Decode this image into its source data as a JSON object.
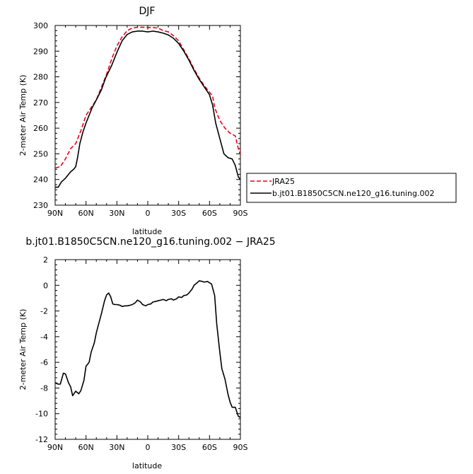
{
  "chart_data": [
    {
      "type": "line",
      "title": "DJF",
      "xlabel": "latitude",
      "ylabel": "2-meter Air Temp (K)",
      "ylim": [
        230,
        300
      ],
      "xlim": [
        -90,
        90
      ],
      "x_axis_direction": "90N on left, 90S on right (x = degrees south positive)",
      "yticks": [
        230,
        240,
        250,
        260,
        270,
        280,
        290,
        300
      ],
      "xtick_values": [
        -90,
        -60,
        -30,
        0,
        30,
        60,
        90
      ],
      "xtick_labels": [
        "90N",
        "60N",
        "30N",
        "0",
        "30S",
        "60S",
        "90S"
      ],
      "grid": false,
      "legend_position": "right, outside plot",
      "series": [
        {
          "name": "JRA25",
          "color": "#e8001c",
          "dash": "dashed",
          "x": [
            -90,
            -85,
            -80,
            -75,
            -70,
            -65,
            -60,
            -55,
            -50,
            -45,
            -40,
            -35,
            -30,
            -25,
            -20,
            -15,
            -10,
            -5,
            0,
            5,
            10,
            15,
            20,
            25,
            30,
            35,
            40,
            45,
            50,
            55,
            60,
            63,
            65,
            70,
            75,
            80,
            85,
            88,
            90
          ],
          "y": [
            244.5,
            245,
            248,
            252,
            254,
            259,
            265,
            268,
            271,
            276,
            281,
            287,
            292,
            295.5,
            298,
            299,
            299.3,
            299.3,
            299.2,
            299.2,
            299,
            298,
            297.5,
            296,
            294,
            290.5,
            287,
            283,
            279.5,
            276.5,
            274,
            272.5,
            268,
            263,
            260,
            258,
            257,
            252,
            249.5
          ]
        },
        {
          "name": "b.jt01.B1850C5CN.ne120_g16.tuning.002",
          "color": "#000000",
          "dash": "solid",
          "x": [
            -90,
            -87,
            -84,
            -80,
            -75,
            -72,
            -70,
            -68,
            -66,
            -63,
            -60,
            -57,
            -54,
            -50,
            -45,
            -41,
            -38,
            -35,
            -30,
            -25,
            -20,
            -15,
            -10,
            -5,
            0,
            5,
            10,
            15,
            20,
            25,
            30,
            35,
            40,
            45,
            50,
            55,
            60,
            63,
            66,
            70,
            74,
            78,
            82,
            85,
            88,
            90
          ],
          "y": [
            237,
            237,
            239,
            240.5,
            243,
            244,
            245,
            249,
            254,
            258.5,
            262,
            265,
            268,
            271,
            275,
            279.5,
            282,
            284.5,
            289.5,
            294,
            296.5,
            297.5,
            297.8,
            297.8,
            297.5,
            297.8,
            297.5,
            297,
            296.3,
            295,
            293,
            290,
            286.5,
            282.5,
            279,
            276,
            273,
            269,
            262,
            256,
            250,
            248.5,
            248,
            245.5,
            241,
            240
          ]
        }
      ]
    },
    {
      "type": "line",
      "title": "b.jt01.B1850C5CN.ne120_g16.tuning.002  −  JRA25",
      "xlabel": "latitude",
      "ylabel": "2-meter Air Temp (K)",
      "ylim": [
        -12,
        2
      ],
      "xlim": [
        -90,
        90
      ],
      "yticks": [
        -12,
        -10,
        -8,
        -6,
        -4,
        -2,
        0,
        2
      ],
      "xtick_values": [
        -90,
        -60,
        -30,
        0,
        30,
        60,
        90
      ],
      "xtick_labels": [
        "90N",
        "60N",
        "30N",
        "0",
        "30S",
        "60S",
        "90S"
      ],
      "grid": false,
      "series": [
        {
          "color": "#000000",
          "x": [
            -90,
            -87,
            -85,
            -82,
            -80,
            -77,
            -75,
            -73,
            -70,
            -67,
            -65,
            -62,
            -60,
            -57,
            -55,
            -52,
            -50,
            -47,
            -45,
            -42,
            -40,
            -38,
            -36,
            -34,
            -32,
            -30,
            -27,
            -25,
            -22,
            -20,
            -17,
            -15,
            -12,
            -10,
            -7,
            -5,
            -2,
            0,
            3,
            5,
            8,
            10,
            13,
            15,
            18,
            20,
            23,
            25,
            28,
            30,
            33,
            35,
            38,
            40,
            43,
            45,
            48,
            50,
            53,
            55,
            58,
            60,
            62,
            65,
            67,
            70,
            72,
            75,
            78,
            80,
            82,
            85,
            88,
            90
          ],
          "y": [
            -7.6,
            -7.7,
            -7.7,
            -6.85,
            -6.9,
            -7.6,
            -7.9,
            -8.6,
            -8.25,
            -8.45,
            -8.2,
            -7.4,
            -6.3,
            -6.0,
            -5.2,
            -4.5,
            -3.7,
            -2.8,
            -2.2,
            -1.2,
            -0.75,
            -0.6,
            -0.9,
            -1.45,
            -1.5,
            -1.5,
            -1.55,
            -1.65,
            -1.6,
            -1.6,
            -1.55,
            -1.5,
            -1.35,
            -1.15,
            -1.3,
            -1.5,
            -1.6,
            -1.5,
            -1.45,
            -1.3,
            -1.25,
            -1.2,
            -1.15,
            -1.1,
            -1.2,
            -1.1,
            -1.05,
            -1.15,
            -1.05,
            -0.9,
            -0.95,
            -0.8,
            -0.75,
            -0.6,
            -0.3,
            0.0,
            0.2,
            0.35,
            0.3,
            0.25,
            0.3,
            0.2,
            0.1,
            -0.8,
            -3.0,
            -5.2,
            -6.5,
            -7.3,
            -8.5,
            -9.1,
            -9.5,
            -9.5,
            -10.2,
            -10.3
          ]
        }
      ]
    }
  ],
  "legend": {
    "entries": [
      {
        "label": "JRA25",
        "color": "#e8001c",
        "dash": "dashed"
      },
      {
        "label": "b.jt01.B1850C5CN.ne120_g16.tuning.002",
        "color": "#000000",
        "dash": "solid"
      }
    ]
  }
}
